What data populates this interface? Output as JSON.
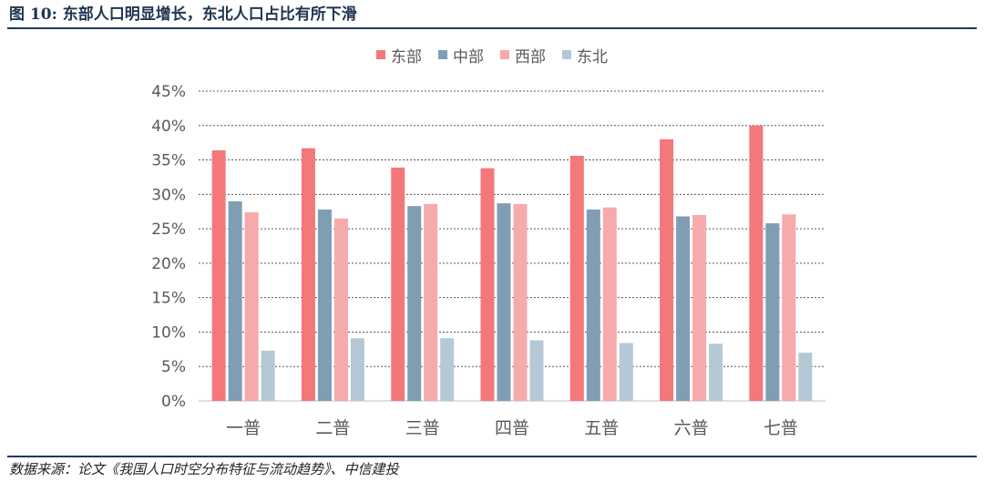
{
  "header": {
    "title": "图 10: 东部人口明显增长，东北人口占比有所下滑"
  },
  "footer": {
    "source": "数据来源：论文《我国人口时空分布特征与流动趋势》、中信建投"
  },
  "chart_data": {
    "type": "bar",
    "title": "",
    "xlabel": "",
    "ylabel": "",
    "categories": [
      "一普",
      "二普",
      "三普",
      "四普",
      "五普",
      "六普",
      "七普"
    ],
    "ylim": [
      0,
      45
    ],
    "yticks": [
      "0%",
      "5%",
      "10%",
      "15%",
      "20%",
      "25%",
      "30%",
      "35%",
      "40%",
      "45%"
    ],
    "grid": true,
    "legend_position": "top-center",
    "series": [
      {
        "name": "东部",
        "color": "#f4777a",
        "values": [
          36.4,
          36.7,
          33.9,
          33.8,
          35.6,
          38.0,
          40.0
        ]
      },
      {
        "name": "中部",
        "color": "#7f9db3",
        "values": [
          29.0,
          27.8,
          28.3,
          28.7,
          27.8,
          26.8,
          25.8
        ]
      },
      {
        "name": "西部",
        "color": "#f6aaab",
        "values": [
          27.4,
          26.5,
          28.6,
          28.6,
          28.1,
          27.0,
          27.1
        ]
      },
      {
        "name": "东北",
        "color": "#b4c8d6",
        "values": [
          7.3,
          9.1,
          9.1,
          8.8,
          8.4,
          8.3,
          7.0
        ]
      }
    ]
  }
}
